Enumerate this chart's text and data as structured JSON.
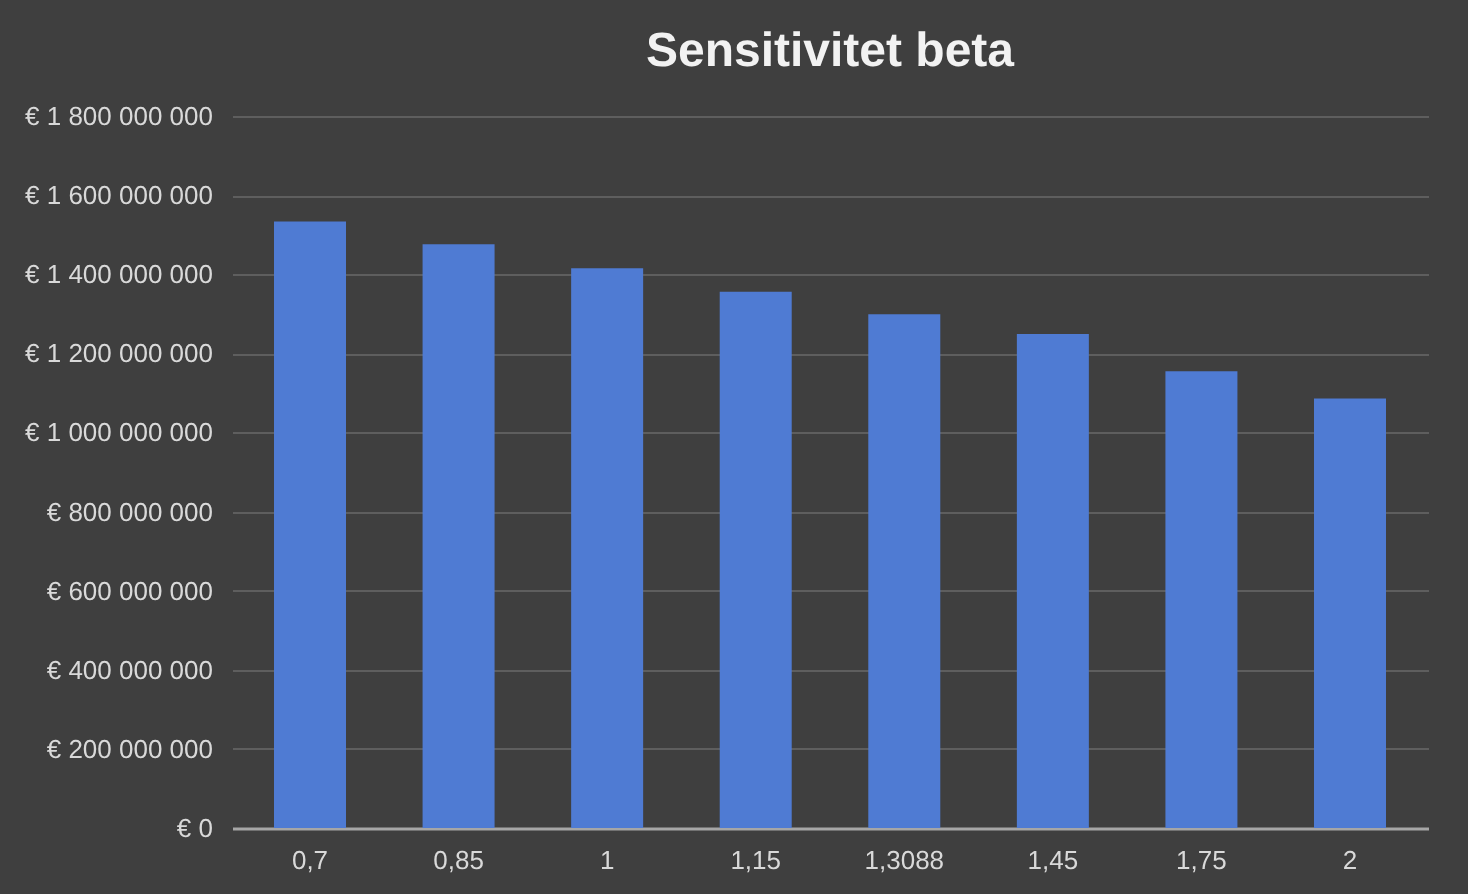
{
  "chart_data": {
    "type": "bar",
    "title": "Sensitivitet beta",
    "categories": [
      "0,7",
      "0,85",
      "1",
      "1,15",
      "1,3088",
      "1,45",
      "1,75",
      "2"
    ],
    "series": [
      {
        "color": "#4f7bd3",
        "values": [
          1533000000,
          1476000000,
          1415000000,
          1356000000,
          1299000000,
          1249000000,
          1155000000,
          1086000000
        ]
      }
    ],
    "ylim": [
      0,
      1800000000
    ],
    "yticks": [
      {
        "value": 0,
        "label": "€ 0"
      },
      {
        "value": 200000000,
        "label": "€ 200 000 000"
      },
      {
        "value": 400000000,
        "label": "€ 400 000 000"
      },
      {
        "value": 600000000,
        "label": "€ 600 000 000"
      },
      {
        "value": 800000000,
        "label": "€ 800 000 000"
      },
      {
        "value": 1000000000,
        "label": "€ 1 000 000 000"
      },
      {
        "value": 1200000000,
        "label": "€ 1 200 000 000"
      },
      {
        "value": 1400000000,
        "label": "€ 1 400 000 000"
      },
      {
        "value": 1600000000,
        "label": "€ 1 600 000 000"
      },
      {
        "value": 1800000000,
        "label": "€ 1 800 000 000"
      }
    ],
    "grid": "y",
    "legend": false
  }
}
